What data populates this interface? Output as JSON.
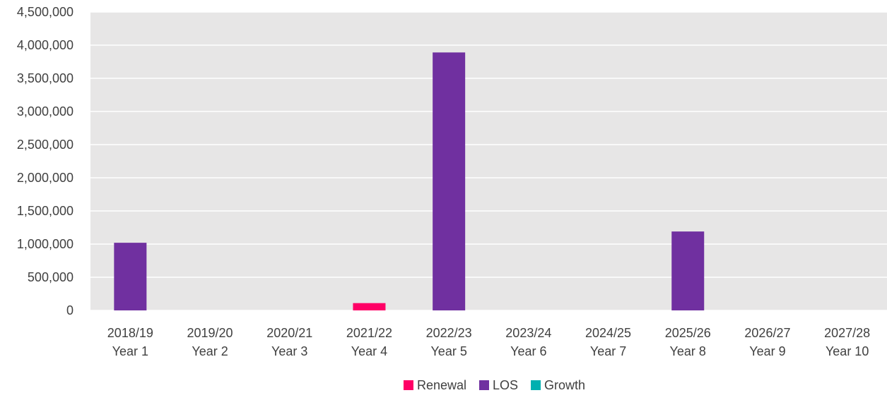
{
  "chart_data": {
    "type": "bar",
    "categories": [
      [
        "2018/19",
        "Year 1"
      ],
      [
        "2019/20",
        "Year 2"
      ],
      [
        "2020/21",
        "Year 3"
      ],
      [
        "2021/22",
        "Year 4"
      ],
      [
        "2022/23",
        "Year 5"
      ],
      [
        "2023/24",
        "Year 6"
      ],
      [
        "2024/25",
        "Year 7"
      ],
      [
        "2025/26",
        "Year 8"
      ],
      [
        "2026/27",
        "Year 9"
      ],
      [
        "2027/28",
        "Year 10"
      ]
    ],
    "series": [
      {
        "name": "Renewal",
        "color": "#FF0066",
        "values": [
          0,
          0,
          0,
          110000,
          0,
          0,
          0,
          0,
          0,
          0
        ]
      },
      {
        "name": "LOS",
        "color": "#7030A0",
        "values": [
          1020000,
          0,
          0,
          0,
          3890000,
          0,
          0,
          1190000,
          0,
          0
        ]
      },
      {
        "name": "Growth",
        "color": "#00B0B0",
        "values": [
          0,
          0,
          0,
          0,
          0,
          0,
          0,
          0,
          0,
          0
        ]
      }
    ],
    "ylim": [
      0,
      4500000
    ],
    "yticks": [
      0,
      500000,
      1000000,
      1500000,
      2000000,
      2500000,
      3000000,
      3500000,
      4000000,
      4500000
    ],
    "ytick_labels": [
      "0",
      "500,000",
      "1,000,000",
      "1,500,000",
      "2,000,000",
      "2,500,000",
      "3,000,000",
      "3,500,000",
      "4,000,000",
      "4,500,000"
    ],
    "grid": true,
    "legend_position": "bottom",
    "plot_background": "#E7E6E6",
    "gridline_color": "#FFFFFF"
  }
}
